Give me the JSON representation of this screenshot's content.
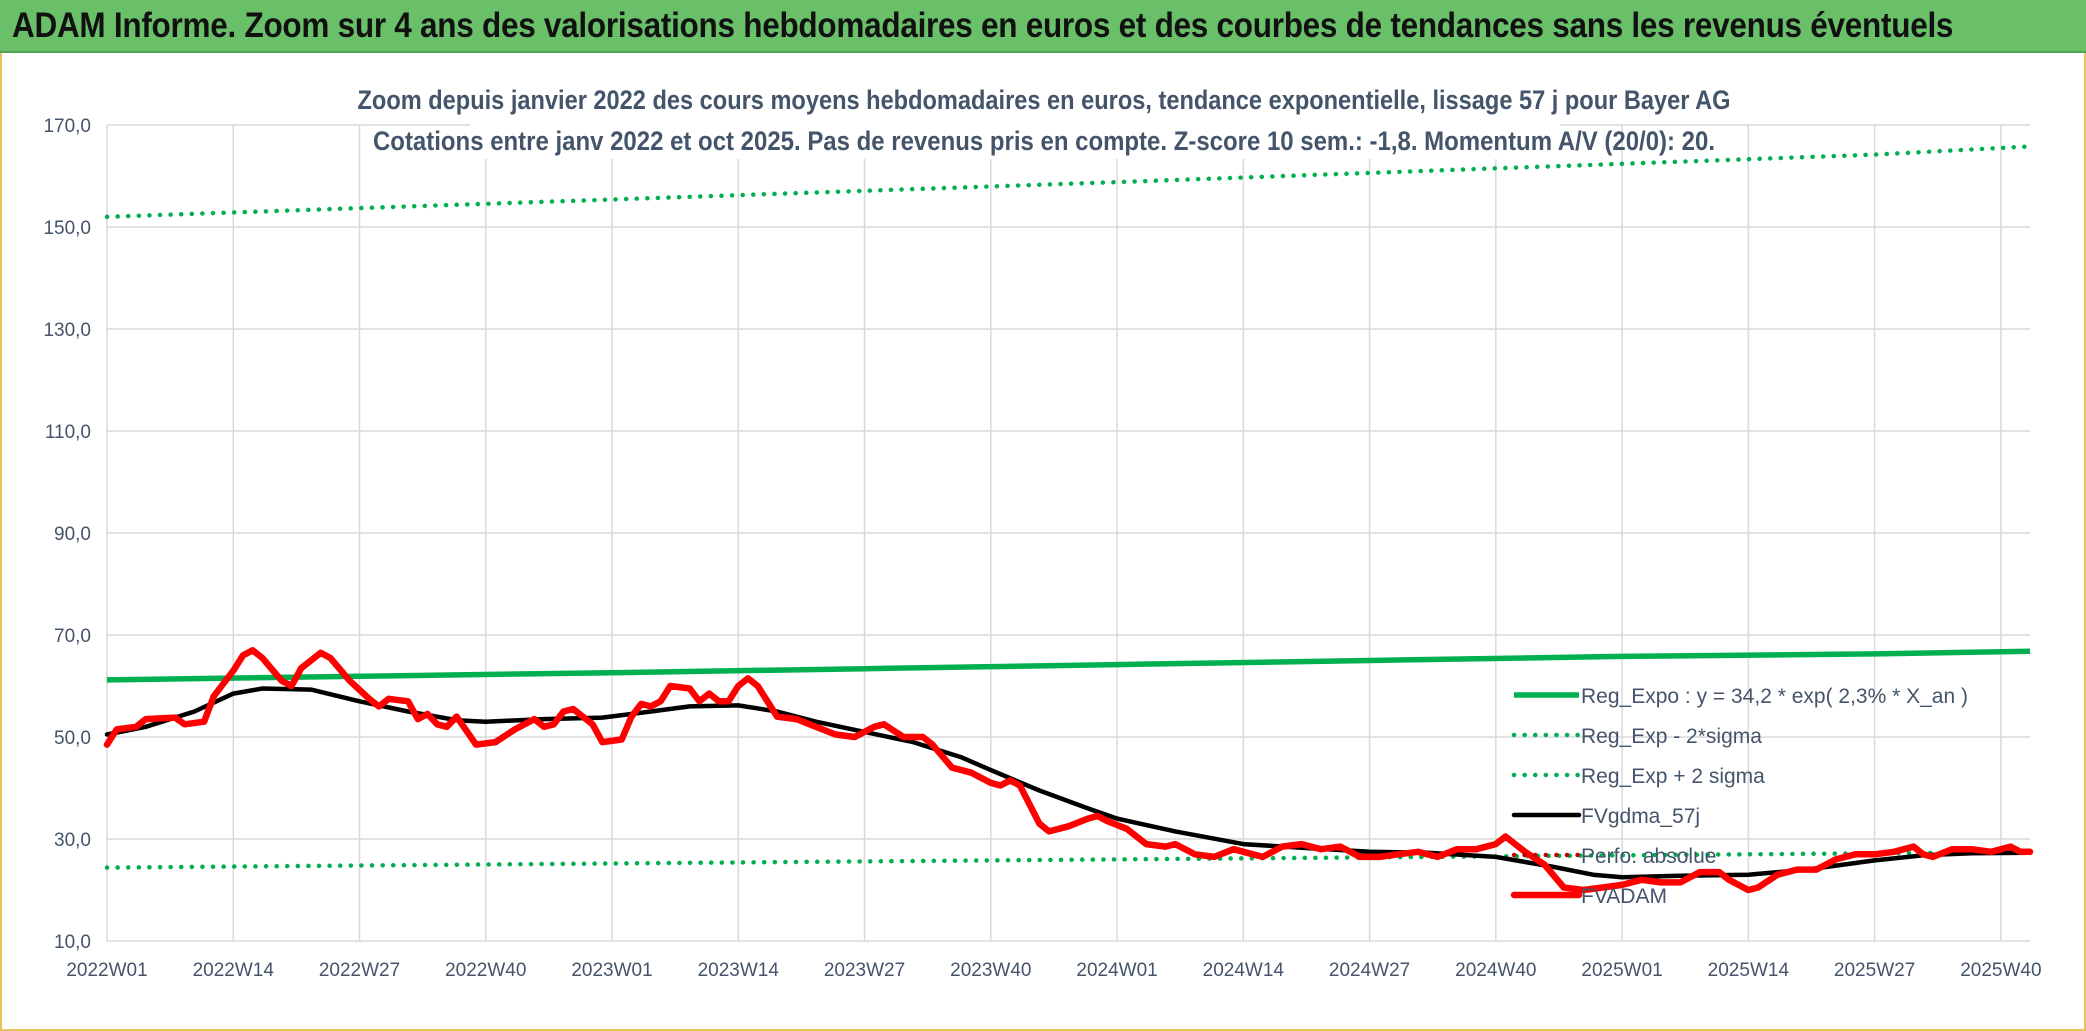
{
  "header": {
    "title": "ADAM Informe. Zoom sur 4 ans des valorisations hebdomadaires en euros et des courbes de tendances sans les revenus éventuels"
  },
  "chart_data": {
    "type": "line",
    "title": "Zoom depuis janvier 2022 des cours moyens hebdomadaires en euros, tendance exponentielle, lissage 57 j pour Bayer AG",
    "subtitle": "Cotations entre janv 2022 et oct 2025. Pas de revenus pris en compte. Z-score 10 sem.: -1,8. Momentum A/V (20/0): 20.",
    "ylim": [
      10,
      170
    ],
    "y_ticks": [
      "10,0",
      "30,0",
      "50,0",
      "70,0",
      "90,0",
      "110,0",
      "130,0",
      "150,0",
      "170,0"
    ],
    "x_categories": [
      "2022W01",
      "2022W14",
      "2022W27",
      "2022W40",
      "2023W01",
      "2023W14",
      "2023W27",
      "2023W40",
      "2024W01",
      "2024W14",
      "2024W27",
      "2024W40",
      "2025W01",
      "2025W14",
      "2025W27",
      "2025W40"
    ],
    "grid": true,
    "legend_position": "bottom-right",
    "series": [
      {
        "name": "Reg_Expo : y = 34,2 * exp( 2,3% *  X_an )",
        "style": "solid",
        "color": "#00b050",
        "points": [
          [
            "2022W01",
            61.2
          ],
          [
            "2022W27",
            61.9
          ],
          [
            "2023W01",
            62.6
          ],
          [
            "2023W27",
            63.4
          ],
          [
            "2024W01",
            64.2
          ],
          [
            "2024W27",
            65.0
          ],
          [
            "2025W01",
            65.8
          ],
          [
            "2025W27",
            66.3
          ],
          [
            "2025W43",
            66.8
          ]
        ]
      },
      {
        "name": "Reg_Exp - 2*sigma",
        "style": "dotted",
        "color": "#00b050",
        "points": [
          [
            "2022W01",
            24.4
          ],
          [
            "2022W27",
            24.8
          ],
          [
            "2023W01",
            25.2
          ],
          [
            "2023W27",
            25.6
          ],
          [
            "2024W01",
            26.0
          ],
          [
            "2024W27",
            26.4
          ],
          [
            "2025W01",
            26.8
          ],
          [
            "2025W27",
            27.2
          ],
          [
            "2025W43",
            27.4
          ]
        ]
      },
      {
        "name": "Reg_Exp + 2 sigma",
        "style": "dotted",
        "color": "#00b050",
        "points": [
          [
            "2022W01",
            152.0
          ],
          [
            "2022W27",
            153.7
          ],
          [
            "2023W01",
            155.4
          ],
          [
            "2023W27",
            157.1
          ],
          [
            "2024W01",
            158.8
          ],
          [
            "2024W27",
            160.6
          ],
          [
            "2025W01",
            162.4
          ],
          [
            "2025W27",
            164.2
          ],
          [
            "2025W43",
            165.8
          ]
        ]
      },
      {
        "name": "FVgdma_57j",
        "style": "solid",
        "color": "#000000",
        "points": [
          [
            "2022W01",
            50.5
          ],
          [
            "2022W05",
            52.0
          ],
          [
            "2022W10",
            55.0
          ],
          [
            "2022W14",
            58.5
          ],
          [
            "2022W17",
            59.5
          ],
          [
            "2022W22",
            59.3
          ],
          [
            "2022W27",
            57.0
          ],
          [
            "2022W32",
            55.0
          ],
          [
            "2022W37",
            53.3
          ],
          [
            "2022W40",
            53.0
          ],
          [
            "2022W46",
            53.5
          ],
          [
            "2022W52",
            53.8
          ],
          [
            "2023W05",
            55.0
          ],
          [
            "2023W09",
            56.0
          ],
          [
            "2023W14",
            56.2
          ],
          [
            "2023W18",
            55.0
          ],
          [
            "2023W22",
            53.0
          ],
          [
            "2023W27",
            51.0
          ],
          [
            "2023W32",
            49.0
          ],
          [
            "2023W37",
            46.0
          ],
          [
            "2023W40",
            43.5
          ],
          [
            "2023W45",
            39.5
          ],
          [
            "2023W50",
            36.0
          ],
          [
            "2024W01",
            34.0
          ],
          [
            "2024W07",
            31.5
          ],
          [
            "2024W14",
            29.0
          ],
          [
            "2024W20",
            28.3
          ],
          [
            "2024W27",
            27.5
          ],
          [
            "2024W33",
            27.3
          ],
          [
            "2024W40",
            26.5
          ],
          [
            "2024W46",
            24.5
          ],
          [
            "2024W50",
            23.0
          ],
          [
            "2025W01",
            22.5
          ],
          [
            "2025W07",
            22.8
          ],
          [
            "2025W14",
            23.0
          ],
          [
            "2025W20",
            24.0
          ],
          [
            "2025W27",
            25.8
          ],
          [
            "2025W32",
            26.8
          ],
          [
            "2025W37",
            27.2
          ],
          [
            "2025W43",
            27.3
          ]
        ]
      },
      {
        "name": "Perfo. absolue",
        "style": "dotted",
        "color": "#c00000",
        "points": []
      },
      {
        "name": "FVADAM",
        "style": "solid",
        "color": "#ff0000",
        "points": [
          [
            "2022W01",
            48.5
          ],
          [
            "2022W02",
            51.5
          ],
          [
            "2022W04",
            52.0
          ],
          [
            "2022W05",
            53.5
          ],
          [
            "2022W08",
            53.8
          ],
          [
            "2022W09",
            52.5
          ],
          [
            "2022W11",
            53.0
          ],
          [
            "2022W12",
            58.0
          ],
          [
            "2022W14",
            63.0
          ],
          [
            "2022W15",
            66.0
          ],
          [
            "2022W16",
            67.0
          ],
          [
            "2022W17",
            65.5
          ],
          [
            "2022W19",
            61.0
          ],
          [
            "2022W20",
            60.0
          ],
          [
            "2022W21",
            63.5
          ],
          [
            "2022W23",
            66.5
          ],
          [
            "2022W24",
            65.5
          ],
          [
            "2022W26",
            61.0
          ],
          [
            "2022W28",
            57.5
          ],
          [
            "2022W29",
            56.0
          ],
          [
            "2022W30",
            57.5
          ],
          [
            "2022W32",
            57.0
          ],
          [
            "2022W33",
            53.5
          ],
          [
            "2022W34",
            54.5
          ],
          [
            "2022W35",
            52.5
          ],
          [
            "2022W36",
            52.0
          ],
          [
            "2022W37",
            54.0
          ],
          [
            "2022W39",
            48.5
          ],
          [
            "2022W41",
            49.0
          ],
          [
            "2022W43",
            51.5
          ],
          [
            "2022W45",
            53.5
          ],
          [
            "2022W46",
            52.0
          ],
          [
            "2022W47",
            52.5
          ],
          [
            "2022W48",
            55.0
          ],
          [
            "2022W49",
            55.5
          ],
          [
            "2022W51",
            52.5
          ],
          [
            "2022W52",
            49.0
          ],
          [
            "2023W02",
            49.5
          ],
          [
            "2023W03",
            54.0
          ],
          [
            "2023W04",
            56.5
          ],
          [
            "2023W05",
            56.0
          ],
          [
            "2023W06",
            57.0
          ],
          [
            "2023W07",
            60.0
          ],
          [
            "2023W09",
            59.5
          ],
          [
            "2023W10",
            57.0
          ],
          [
            "2023W11",
            58.5
          ],
          [
            "2023W12",
            57.0
          ],
          [
            "2023W13",
            57.0
          ],
          [
            "2023W14",
            60.0
          ],
          [
            "2023W15",
            61.5
          ],
          [
            "2023W16",
            60.0
          ],
          [
            "2023W17",
            57.0
          ],
          [
            "2023W18",
            54.0
          ],
          [
            "2023W20",
            53.5
          ],
          [
            "2023W22",
            52.0
          ],
          [
            "2023W24",
            50.5
          ],
          [
            "2023W26",
            50.0
          ],
          [
            "2023W28",
            52.0
          ],
          [
            "2023W29",
            52.5
          ],
          [
            "2023W31",
            50.0
          ],
          [
            "2023W33",
            50.0
          ],
          [
            "2023W34",
            48.5
          ],
          [
            "2023W36",
            44.0
          ],
          [
            "2023W38",
            43.0
          ],
          [
            "2023W40",
            41.0
          ],
          [
            "2023W41",
            40.5
          ],
          [
            "2023W42",
            41.5
          ],
          [
            "2023W43",
            40.5
          ],
          [
            "2023W45",
            33.0
          ],
          [
            "2023W46",
            31.5
          ],
          [
            "2023W48",
            32.5
          ],
          [
            "2023W50",
            34.0
          ],
          [
            "2023W51",
            34.5
          ],
          [
            "2023W52",
            33.5
          ],
          [
            "2024W02",
            32.0
          ],
          [
            "2024W04",
            29.0
          ],
          [
            "2024W06",
            28.5
          ],
          [
            "2024W07",
            29.0
          ],
          [
            "2024W09",
            27.0
          ],
          [
            "2024W11",
            26.5
          ],
          [
            "2024W13",
            28.0
          ],
          [
            "2024W15",
            27.0
          ],
          [
            "2024W16",
            26.5
          ],
          [
            "2024W18",
            28.5
          ],
          [
            "2024W20",
            29.0
          ],
          [
            "2024W22",
            28.0
          ],
          [
            "2024W24",
            28.5
          ],
          [
            "2024W26",
            26.5
          ],
          [
            "2024W28",
            26.5
          ],
          [
            "2024W30",
            27.0
          ],
          [
            "2024W32",
            27.5
          ],
          [
            "2024W34",
            26.5
          ],
          [
            "2024W36",
            28.0
          ],
          [
            "2024W38",
            28.0
          ],
          [
            "2024W40",
            29.0
          ],
          [
            "2024W41",
            30.5
          ],
          [
            "2024W43",
            27.5
          ],
          [
            "2024W45",
            25.0
          ],
          [
            "2024W47",
            20.5
          ],
          [
            "2024W49",
            20.0
          ],
          [
            "2024W51",
            20.5
          ],
          [
            "2025W01",
            21.0
          ],
          [
            "2025W03",
            22.0
          ],
          [
            "2025W05",
            21.5
          ],
          [
            "2025W07",
            21.5
          ],
          [
            "2025W09",
            23.5
          ],
          [
            "2025W11",
            23.5
          ],
          [
            "2025W12",
            22.0
          ],
          [
            "2025W14",
            20.0
          ],
          [
            "2025W15",
            20.5
          ],
          [
            "2025W17",
            23.0
          ],
          [
            "2025W19",
            24.0
          ],
          [
            "2025W21",
            24.0
          ],
          [
            "2025W23",
            26.0
          ],
          [
            "2025W25",
            27.0
          ],
          [
            "2025W27",
            27.0
          ],
          [
            "2025W29",
            27.5
          ],
          [
            "2025W31",
            28.5
          ],
          [
            "2025W32",
            27.0
          ],
          [
            "2025W33",
            26.5
          ],
          [
            "2025W35",
            28.0
          ],
          [
            "2025W37",
            28.0
          ],
          [
            "2025W39",
            27.5
          ],
          [
            "2025W41",
            28.5
          ],
          [
            "2025W42",
            27.5
          ],
          [
            "2025W43",
            27.5
          ]
        ]
      }
    ]
  }
}
